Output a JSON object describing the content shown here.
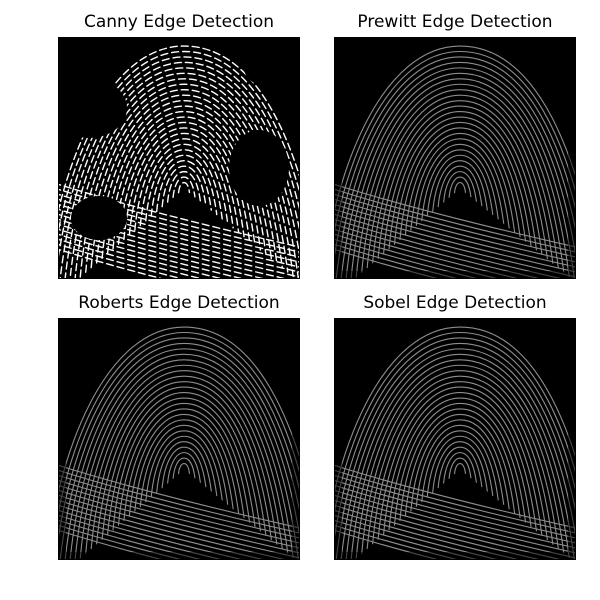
{
  "panels": [
    {
      "title": "Canny Edge Detection",
      "style": "binary"
    },
    {
      "title": "Prewitt Edge Detection",
      "style": "gray"
    },
    {
      "title": "Roberts Edge Detection",
      "style": "gray"
    },
    {
      "title": "Sobel Edge Detection",
      "style": "gray"
    }
  ],
  "colors": {
    "background": "#000000",
    "edge_binary": "#ffffff",
    "edge_gray": "#bdbdbd"
  }
}
